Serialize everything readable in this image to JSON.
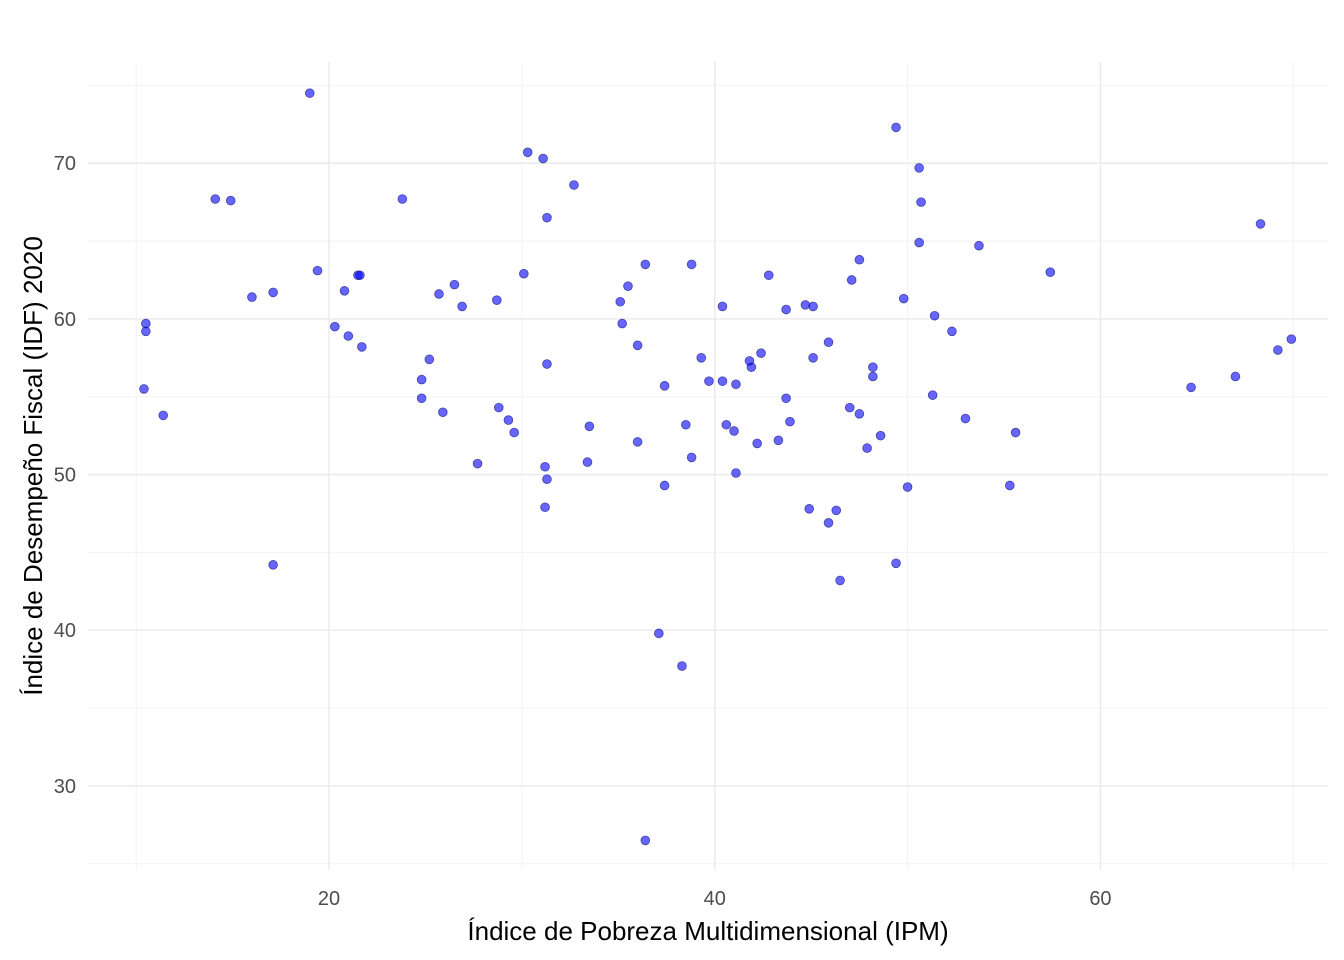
{
  "chart_data": {
    "type": "scatter",
    "title": "",
    "xlabel": "Índice de Pobreza Multidimensional (IPM)",
    "ylabel": "Índice de Desempeño Fiscal (IDF) 2020",
    "xlim": [
      7.5,
      71.8
    ],
    "ylim": [
      24.6,
      76.5
    ],
    "x_ticks": [
      20,
      40,
      60
    ],
    "x_tick_labels": [
      "20",
      "40",
      "60"
    ],
    "y_ticks": [
      30,
      40,
      50,
      60,
      70
    ],
    "y_tick_labels": [
      "30",
      "40",
      "50",
      "60",
      "70"
    ],
    "grid": true,
    "legend": "none",
    "point_color": "#0000ff",
    "point_opacity": 0.6,
    "points": [
      [
        10.4,
        55.5
      ],
      [
        10.5,
        59.7
      ],
      [
        10.5,
        59.2
      ],
      [
        11.4,
        53.8
      ],
      [
        14.1,
        67.7
      ],
      [
        14.9,
        67.6
      ],
      [
        16.0,
        61.4
      ],
      [
        17.1,
        61.7
      ],
      [
        17.1,
        44.2
      ],
      [
        19.0,
        74.5
      ],
      [
        19.4,
        63.1
      ],
      [
        20.3,
        59.5
      ],
      [
        20.8,
        61.8
      ],
      [
        21.0,
        58.9
      ],
      [
        21.5,
        62.8
      ],
      [
        21.6,
        62.8
      ],
      [
        21.7,
        58.2
      ],
      [
        23.8,
        67.7
      ],
      [
        24.8,
        56.1
      ],
      [
        24.8,
        54.9
      ],
      [
        25.2,
        57.4
      ],
      [
        25.7,
        61.6
      ],
      [
        25.9,
        54.0
      ],
      [
        26.5,
        62.2
      ],
      [
        26.9,
        60.8
      ],
      [
        27.7,
        50.7
      ],
      [
        28.7,
        61.2
      ],
      [
        28.8,
        54.3
      ],
      [
        29.3,
        53.5
      ],
      [
        29.6,
        52.7
      ],
      [
        30.1,
        62.9
      ],
      [
        30.3,
        70.7
      ],
      [
        31.1,
        70.3
      ],
      [
        31.2,
        47.9
      ],
      [
        31.2,
        50.5
      ],
      [
        31.3,
        49.7
      ],
      [
        31.3,
        57.1
      ],
      [
        31.3,
        66.5
      ],
      [
        32.7,
        68.6
      ],
      [
        33.4,
        50.8
      ],
      [
        33.5,
        53.1
      ],
      [
        35.1,
        61.1
      ],
      [
        35.2,
        59.7
      ],
      [
        35.5,
        62.1
      ],
      [
        36.0,
        58.3
      ],
      [
        36.0,
        52.1
      ],
      [
        36.4,
        63.5
      ],
      [
        36.4,
        26.5
      ],
      [
        37.1,
        39.8
      ],
      [
        37.4,
        55.7
      ],
      [
        37.4,
        49.3
      ],
      [
        38.3,
        37.7
      ],
      [
        38.5,
        53.2
      ],
      [
        38.8,
        63.5
      ],
      [
        38.8,
        51.1
      ],
      [
        39.3,
        57.5
      ],
      [
        39.7,
        56.0
      ],
      [
        40.4,
        56.0
      ],
      [
        40.4,
        60.8
      ],
      [
        40.6,
        53.2
      ],
      [
        41.0,
        52.8
      ],
      [
        41.1,
        55.8
      ],
      [
        41.1,
        50.1
      ],
      [
        41.8,
        57.3
      ],
      [
        41.9,
        56.9
      ],
      [
        42.2,
        52.0
      ],
      [
        42.4,
        57.8
      ],
      [
        42.8,
        62.8
      ],
      [
        43.3,
        52.2
      ],
      [
        43.7,
        60.6
      ],
      [
        43.7,
        54.9
      ],
      [
        43.9,
        53.4
      ],
      [
        44.7,
        60.9
      ],
      [
        44.9,
        47.8
      ],
      [
        45.1,
        60.8
      ],
      [
        45.1,
        57.5
      ],
      [
        45.9,
        46.9
      ],
      [
        45.9,
        58.5
      ],
      [
        46.3,
        47.7
      ],
      [
        46.5,
        43.2
      ],
      [
        47.0,
        54.3
      ],
      [
        47.1,
        62.5
      ],
      [
        47.5,
        53.9
      ],
      [
        47.5,
        63.8
      ],
      [
        47.9,
        51.7
      ],
      [
        48.2,
        56.3
      ],
      [
        48.2,
        56.9
      ],
      [
        48.6,
        52.5
      ],
      [
        49.4,
        72.3
      ],
      [
        49.4,
        44.3
      ],
      [
        49.8,
        61.3
      ],
      [
        50.0,
        49.2
      ],
      [
        50.6,
        69.7
      ],
      [
        50.6,
        64.9
      ],
      [
        50.7,
        67.5
      ],
      [
        51.3,
        55.1
      ],
      [
        51.4,
        60.2
      ],
      [
        52.3,
        59.2
      ],
      [
        53.0,
        53.6
      ],
      [
        53.7,
        64.7
      ],
      [
        55.3,
        49.3
      ],
      [
        55.6,
        52.7
      ],
      [
        57.4,
        63.0
      ],
      [
        64.7,
        55.6
      ],
      [
        67.0,
        56.3
      ],
      [
        68.3,
        66.1
      ],
      [
        69.2,
        58.0
      ],
      [
        69.9,
        58.7
      ]
    ]
  }
}
